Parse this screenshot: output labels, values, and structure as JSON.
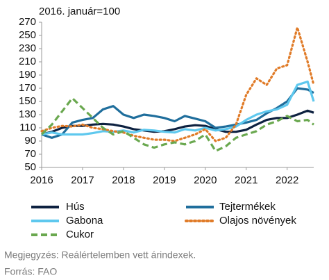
{
  "chart_data": {
    "type": "line",
    "subtitle": "2016. január=100",
    "x": [
      2016,
      2016.25,
      2016.5,
      2016.75,
      2017,
      2017.25,
      2017.5,
      2017.75,
      2018,
      2018.25,
      2018.5,
      2018.75,
      2019,
      2019.25,
      2019.5,
      2019.75,
      2020,
      2020.25,
      2020.5,
      2020.75,
      2021,
      2021.25,
      2021.5,
      2021.75,
      2022,
      2022.25,
      2022.5,
      2022.65
    ],
    "series": [
      {
        "name": "Hús",
        "color": "#0d2140",
        "style": "solid",
        "values": [
          100,
          104,
          110,
          113,
          113,
          115,
          116,
          115,
          112,
          108,
          106,
          104,
          105,
          108,
          112,
          114,
          113,
          108,
          104,
          104,
          107,
          115,
          122,
          125,
          125,
          130,
          136,
          133
        ]
      },
      {
        "name": "Tejtermékek",
        "color": "#1f6e9c",
        "style": "solid",
        "values": [
          100,
          95,
          100,
          118,
          122,
          125,
          138,
          143,
          130,
          125,
          130,
          128,
          125,
          120,
          128,
          124,
          120,
          110,
          112,
          115,
          118,
          122,
          132,
          140,
          150,
          170,
          168,
          163
        ]
      },
      {
        "name": "Gabona",
        "color": "#5ec8ee",
        "style": "solid",
        "values": [
          100,
          103,
          100,
          100,
          100,
          102,
          105,
          104,
          106,
          103,
          107,
          106,
          104,
          103,
          108,
          106,
          110,
          106,
          108,
          112,
          122,
          130,
          135,
          138,
          145,
          175,
          180,
          150
        ]
      },
      {
        "name": "Olajos növények",
        "color": "#e07b28",
        "style": "dotted",
        "values": [
          105,
          110,
          113,
          112,
          115,
          110,
          108,
          105,
          103,
          98,
          95,
          92,
          92,
          90,
          95,
          100,
          108,
          90,
          95,
          115,
          160,
          185,
          175,
          200,
          205,
          262,
          210,
          175
        ]
      },
      {
        "name": "Cukor",
        "color": "#6aa84f",
        "style": "dashed",
        "values": [
          100,
          115,
          135,
          155,
          140,
          125,
          110,
          100,
          105,
          95,
          85,
          80,
          85,
          88,
          85,
          90,
          100,
          75,
          82,
          95,
          100,
          105,
          115,
          120,
          128,
          120,
          122,
          115
        ]
      }
    ],
    "xlim": [
      2016,
      2022.65
    ],
    "xticks": [
      2016,
      2017,
      2018,
      2019,
      2020,
      2021,
      2022
    ],
    "ylim": [
      50,
      270
    ],
    "yticks": [
      50,
      70,
      90,
      110,
      130,
      150,
      170,
      190,
      210,
      230,
      250,
      270
    ],
    "footnotes": [
      "Megjegyzés: Reálértelemben vett árindexek.",
      "Forrás: FAO"
    ]
  }
}
